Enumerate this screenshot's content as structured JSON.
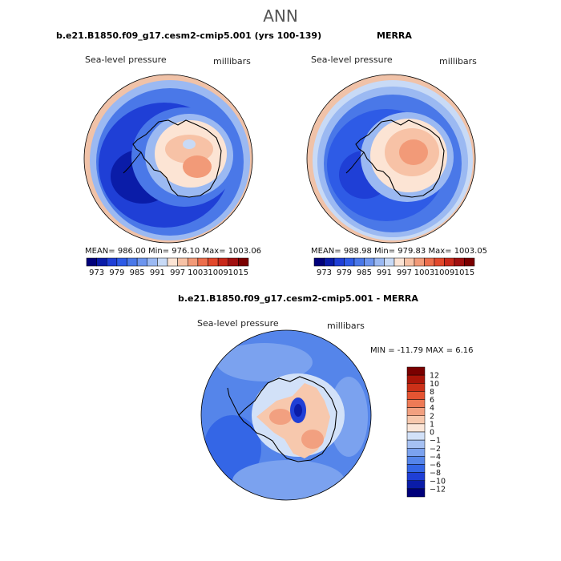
{
  "header": {
    "title": "ANN"
  },
  "panels": [
    {
      "title": "b.e21.B1850.f09_g17.cesm2-cmip5.001 (yrs 100-139)",
      "variable": "Sea-level pressure",
      "units": "millibars",
      "stats": "MEAN= 986.00   Min= 976.10   Max= 1003.06"
    },
    {
      "title": "MERRA",
      "variable": "Sea-level pressure",
      "units": "millibars",
      "stats": "MEAN= 988.98   Min= 979.83   Max= 1003.05"
    },
    {
      "title": "b.e21.B1850.f09_g17.cesm2-cmip5.001 - MERRA",
      "variable": "Sea-level pressure",
      "units": "millibars",
      "stats": "MIN = -11.79 MAX =   6.16"
    }
  ],
  "colors": {
    "abs_scale": [
      "#00007a",
      "#0a1ca8",
      "#1f3fd6",
      "#2e5be6",
      "#4a78e8",
      "#6d95ee",
      "#9bb9f2",
      "#c8daf6",
      "#fce4d4",
      "#f7c2a6",
      "#f29a78",
      "#ec6e4c",
      "#e2492c",
      "#c8281a",
      "#a01010",
      "#7a0000"
    ],
    "diff_scale": [
      "#00007a",
      "#0a1ca8",
      "#1f3fd6",
      "#3466e6",
      "#5585ea",
      "#7ba2ef",
      "#a6c1f3",
      "#d2e1f8",
      "#fbe6d8",
      "#f7c8ad",
      "#f2a080",
      "#ee7a56",
      "#e55432",
      "#cc3018",
      "#aa1408",
      "#7a0000"
    ],
    "ocean_deep": "#1f3fd6",
    "ocean_mid": "#4a78e8",
    "ocean_light": "#9bb9f2",
    "warm_light": "#fce4d4",
    "warm_mid": "#f29a78",
    "land_outline": "#000000"
  },
  "chart_data": [
    {
      "type": "heatmap",
      "title": "b.e21.B1850.f09_g17.cesm2-cmip5.001 (yrs 100-139)",
      "variable": "Sea-level pressure",
      "units": "millibars",
      "mean": 986.0,
      "min": 976.1,
      "max": 1003.06,
      "colorbar_ticks": [
        973,
        979,
        985,
        991,
        997,
        1003,
        1009,
        1015
      ],
      "colorbar_tick_labels": [
        "973",
        "979",
        "985",
        "991",
        "997",
        "1003",
        "1009",
        "1015"
      ]
    },
    {
      "type": "heatmap",
      "title": "MERRA",
      "variable": "Sea-level pressure",
      "units": "millibars",
      "mean": 988.98,
      "min": 979.83,
      "max": 1003.05,
      "colorbar_ticks": [
        973,
        979,
        985,
        991,
        997,
        1003,
        1009,
        1015
      ],
      "colorbar_tick_labels": [
        "973",
        "979",
        "985",
        "991",
        "997",
        "1003",
        "1009",
        "1015"
      ]
    },
    {
      "type": "heatmap",
      "title": "b.e21.B1850.f09_g17.cesm2-cmip5.001 - MERRA",
      "variable": "Sea-level pressure",
      "units": "millibars",
      "min": -11.79,
      "max": 6.16,
      "colorbar_ticks": [
        12,
        10,
        8,
        6,
        4,
        2,
        1,
        0,
        -1,
        -2,
        -4,
        -6,
        -8,
        -10,
        -12
      ],
      "colorbar_tick_labels": [
        "12",
        "10",
        "8",
        "6",
        "4",
        "2",
        "1",
        "0",
        "−1",
        "−2",
        "−4",
        "−6",
        "−8",
        "−10",
        "−12"
      ]
    }
  ]
}
